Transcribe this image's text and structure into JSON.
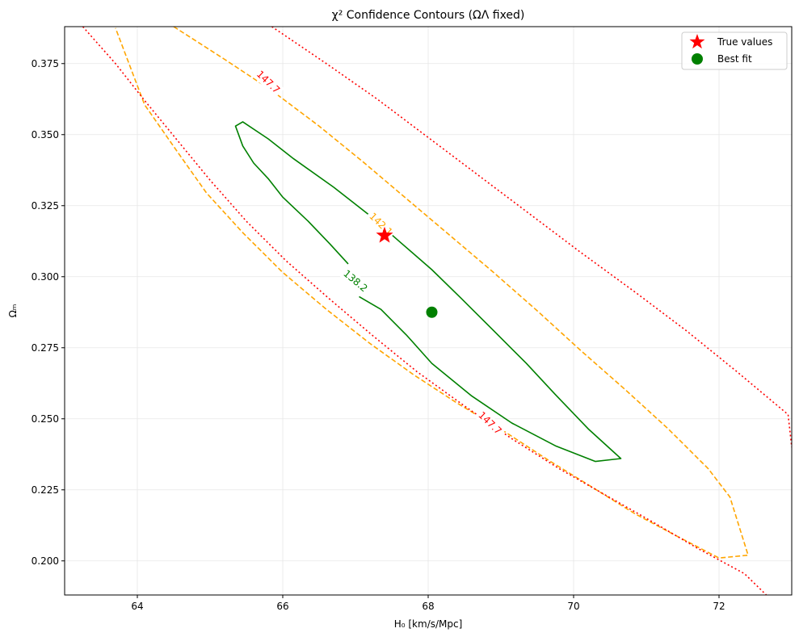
{
  "chart_data": {
    "type": "contour",
    "title": "χ² Confidence Contours (ΩΛ fixed)",
    "xlabel": "H₀ [km/s/Mpc]",
    "ylabel": "Ωₘ",
    "xlim": [
      63.0,
      73.0
    ],
    "ylim": [
      0.188,
      0.388
    ],
    "x_ticks": [
      64,
      66,
      68,
      70,
      72
    ],
    "x_tick_labels": [
      "64",
      "66",
      "68",
      "70",
      "72"
    ],
    "y_ticks": [
      0.2,
      0.225,
      0.25,
      0.275,
      0.3,
      0.325,
      0.35,
      0.375
    ],
    "y_tick_labels": [
      "0.200",
      "0.225",
      "0.250",
      "0.275",
      "0.300",
      "0.325",
      "0.350",
      "0.375"
    ],
    "grid": true,
    "legend_position": "top-right",
    "colors": {
      "level1": "#008000",
      "level2": "#ffa500",
      "level3": "#ff0000",
      "true_marker": "#ff0000",
      "best_marker": "#008000"
    },
    "contours": [
      {
        "level": 138.2,
        "label": "138.2",
        "style": "solid",
        "color": "#008000",
        "paths": [
          [
            [
              66.9,
              0.3045
            ],
            [
              66.65,
              0.3115
            ],
            [
              66.35,
              0.3195
            ],
            [
              66.0,
              0.328
            ],
            [
              65.8,
              0.3345
            ],
            [
              65.6,
              0.34
            ],
            [
              65.45,
              0.346
            ],
            [
              65.35,
              0.353
            ],
            [
              65.45,
              0.3545
            ],
            [
              65.8,
              0.3485
            ],
            [
              66.15,
              0.3415
            ],
            [
              66.7,
              0.3315
            ],
            [
              67.2,
              0.3215
            ],
            [
              67.6,
              0.3125
            ],
            [
              68.05,
              0.3025
            ],
            [
              68.45,
              0.2925
            ],
            [
              68.9,
              0.281
            ],
            [
              69.35,
              0.2695
            ],
            [
              69.75,
              0.2585
            ],
            [
              70.2,
              0.2465
            ],
            [
              70.65,
              0.236
            ],
            [
              70.3,
              0.235
            ],
            [
              69.75,
              0.2405
            ],
            [
              69.15,
              0.2485
            ],
            [
              68.6,
              0.258
            ],
            [
              68.05,
              0.2695
            ],
            [
              67.7,
              0.2795
            ],
            [
              67.35,
              0.2885
            ],
            [
              67.05,
              0.293
            ]
          ]
        ]
      },
      {
        "level": 142.1,
        "label": "142.1",
        "style": "dashed",
        "color": "#ffa500",
        "paths": [
          [
            [
              64.5,
              0.388
            ],
            [
              65.2,
              0.3765
            ],
            [
              65.85,
              0.3655
            ],
            [
              66.5,
              0.353
            ],
            [
              67.1,
              0.3405
            ],
            [
              67.7,
              0.3275
            ],
            [
              68.3,
              0.3145
            ],
            [
              68.9,
              0.3015
            ],
            [
              69.5,
              0.288
            ],
            [
              70.1,
              0.274
            ],
            [
              70.7,
              0.2605
            ],
            [
              71.3,
              0.2465
            ],
            [
              71.85,
              0.2325
            ],
            [
              72.15,
              0.2225
            ],
            [
              72.4,
              0.202
            ],
            [
              72.0,
              0.201
            ],
            [
              71.4,
              0.209
            ],
            [
              70.85,
              0.2165
            ],
            [
              70.25,
              0.226
            ],
            [
              69.65,
              0.2355
            ],
            [
              69.05,
              0.2455
            ],
            [
              68.4,
              0.2555
            ],
            [
              67.8,
              0.2655
            ],
            [
              67.2,
              0.2765
            ],
            [
              66.6,
              0.2885
            ],
            [
              66.0,
              0.3015
            ],
            [
              65.45,
              0.3155
            ],
            [
              64.95,
              0.3295
            ],
            [
              64.55,
              0.344
            ],
            [
              64.1,
              0.3605
            ],
            [
              63.7,
              0.3875
            ]
          ]
        ]
      },
      {
        "level": 147.7,
        "label": "147.7",
        "style": "dotted",
        "color": "#ff0000",
        "paths": [
          [
            [
              65.85,
              0.388
            ],
            [
              66.6,
              0.375
            ],
            [
              67.3,
              0.3625
            ],
            [
              68.0,
              0.349
            ],
            [
              68.7,
              0.3355
            ],
            [
              69.4,
              0.322
            ],
            [
              70.1,
              0.3085
            ],
            [
              70.85,
              0.2945
            ],
            [
              71.55,
              0.281
            ],
            [
              72.25,
              0.2665
            ],
            [
              72.95,
              0.2515
            ],
            [
              73.0,
              0.24
            ]
          ],
          [
            [
              63.25,
              0.388
            ],
            [
              63.7,
              0.375
            ],
            [
              64.1,
              0.362
            ],
            [
              64.55,
              0.348
            ],
            [
              65.0,
              0.334
            ],
            [
              65.5,
              0.3195
            ],
            [
              66.05,
              0.3055
            ],
            [
              66.65,
              0.292
            ],
            [
              67.25,
              0.279
            ],
            [
              67.85,
              0.2665
            ],
            [
              68.5,
              0.2545
            ],
            [
              69.15,
              0.243
            ],
            [
              69.8,
              0.2325
            ],
            [
              70.45,
              0.223
            ],
            [
              71.1,
              0.2135
            ],
            [
              71.7,
              0.2045
            ],
            [
              72.35,
              0.1955
            ],
            [
              72.65,
              0.188
            ]
          ]
        ]
      }
    ],
    "points": [
      {
        "name": "True values",
        "x": 67.4,
        "y": 0.3145,
        "marker": "star",
        "color": "#ff0000"
      },
      {
        "name": "Best fit",
        "x": 68.05,
        "y": 0.2875,
        "marker": "circle",
        "color": "#008000"
      }
    ],
    "legend": [
      {
        "label": "True values",
        "marker": "star",
        "color": "#ff0000"
      },
      {
        "label": "Best fit",
        "marker": "circle",
        "color": "#008000"
      }
    ]
  }
}
